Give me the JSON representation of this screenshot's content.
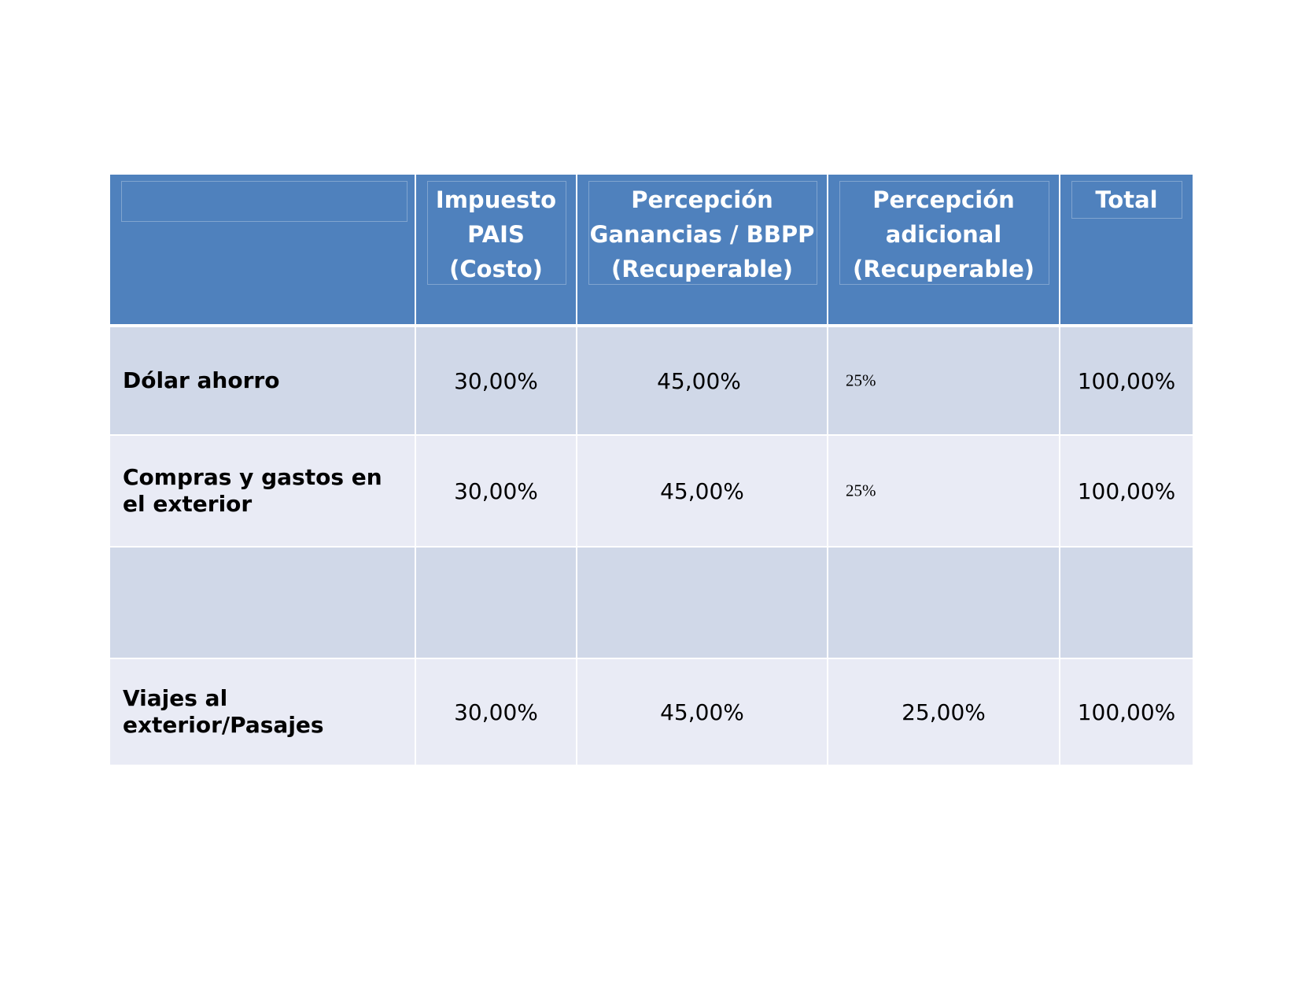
{
  "table": {
    "headers": [
      "",
      "Impuesto PAIS (Costo)",
      "Percepción Ganancias / BBPP (Recuperable)",
      "Percepción adicional (Recuperable)",
      "Total"
    ],
    "header_lines": {
      "col1": [
        "Impuesto",
        "PAIS",
        "(Costo)"
      ],
      "col2": [
        "Percepción",
        "Ganancias / BBPP",
        "(Recuperable)"
      ],
      "col3": [
        "Percepción",
        "adicional",
        "(Recuperable)"
      ],
      "col4": [
        "Total"
      ]
    },
    "rows": [
      {
        "label": "Dólar ahorro",
        "impuesto_pais": "30,00%",
        "percepcion_ganancias": "45,00%",
        "percepcion_adicional": "25%",
        "total": "100,00%"
      },
      {
        "label": "Compras y gastos en el exterior",
        "impuesto_pais": "30,00%",
        "percepcion_ganancias": "45,00%",
        "percepcion_adicional": "25%",
        "total": "100,00%"
      },
      {
        "label": "",
        "impuesto_pais": "",
        "percepcion_ganancias": "",
        "percepcion_adicional": "",
        "total": ""
      },
      {
        "label": "Viajes al exterior/Pasajes",
        "impuesto_pais": "30,00%",
        "percepcion_ganancias": "45,00%",
        "percepcion_adicional": "25,00%",
        "total": "100,00%"
      }
    ]
  },
  "colors": {
    "header_bg": "#4f81bd",
    "row_odd_bg": "#d0d8e8",
    "row_even_bg": "#e9ebf5",
    "header_text": "#ffffff",
    "body_text": "#000000"
  }
}
